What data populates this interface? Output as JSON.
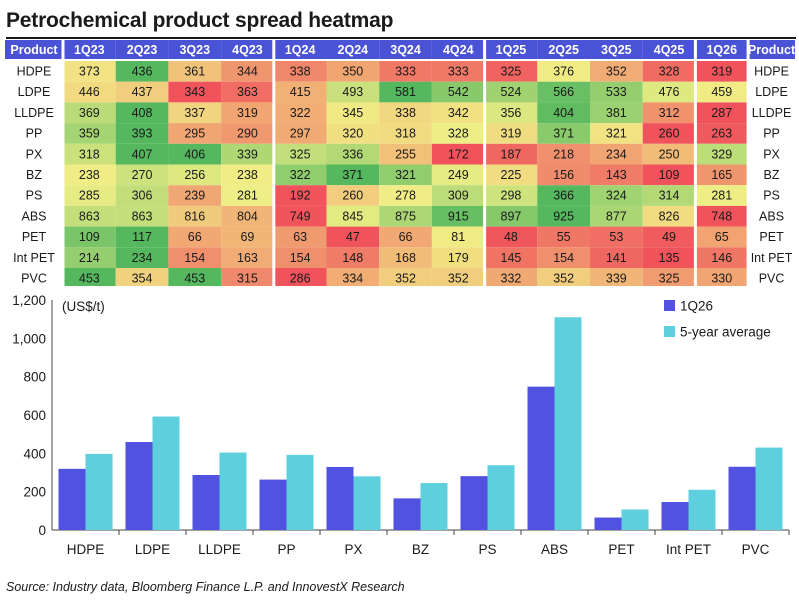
{
  "title": "Petrochemical product spread heatmap",
  "source": "Source: Industry data, Bloomberg Finance L.P. and InnovestX Research",
  "colors": {
    "header_bg": "#4a52d6",
    "header_text": "#ffffff",
    "heat_low": "#f0535c",
    "heat_mid": "#f1ef86",
    "heat_high": "#55b85e",
    "bar_1q26": "#5252e0",
    "bar_avg": "#5ecfdc"
  },
  "chart_data": [
    {
      "type": "heatmap",
      "row_header": "Product",
      "columns": [
        "1Q23",
        "2Q23",
        "3Q23",
        "4Q23",
        "1Q24",
        "2Q24",
        "3Q24",
        "4Q24",
        "1Q25",
        "2Q25",
        "3Q25",
        "4Q25",
        "1Q26"
      ],
      "rows": [
        {
          "product": "HDPE",
          "values": [
            373,
            436,
            361,
            344,
            338,
            350,
            333,
            333,
            325,
            376,
            352,
            328,
            319
          ]
        },
        {
          "product": "LDPE",
          "values": [
            446,
            437,
            343,
            363,
            415,
            493,
            581,
            542,
            524,
            566,
            533,
            476,
            459
          ]
        },
        {
          "product": "LLDPE",
          "values": [
            369,
            408,
            337,
            319,
            322,
            345,
            338,
            342,
            356,
            404,
            381,
            312,
            287
          ]
        },
        {
          "product": "PP",
          "values": [
            359,
            393,
            295,
            290,
            297,
            320,
            318,
            328,
            319,
            371,
            321,
            260,
            263
          ]
        },
        {
          "product": "PX",
          "values": [
            318,
            407,
            406,
            339,
            325,
            336,
            255,
            172,
            187,
            218,
            234,
            250,
            329
          ]
        },
        {
          "product": "BZ",
          "values": [
            238,
            270,
            256,
            238,
            322,
            371,
            321,
            249,
            225,
            156,
            143,
            109,
            165
          ]
        },
        {
          "product": "PS",
          "values": [
            285,
            306,
            239,
            281,
            192,
            260,
            278,
            309,
            298,
            366,
            324,
            314,
            281
          ]
        },
        {
          "product": "ABS",
          "values": [
            863,
            863,
            816,
            804,
            749,
            845,
            875,
            915,
            897,
            925,
            877,
            826,
            748
          ]
        },
        {
          "product": "PET",
          "values": [
            109,
            117,
            66,
            69,
            63,
            47,
            66,
            81,
            48,
            55,
            53,
            49,
            65
          ]
        },
        {
          "product": "Int PET",
          "values": [
            214,
            234,
            154,
            163,
            154,
            148,
            168,
            179,
            145,
            154,
            141,
            135,
            146
          ]
        },
        {
          "product": "PVC",
          "values": [
            453,
            354,
            453,
            315,
            286,
            334,
            352,
            352,
            332,
            352,
            339,
            325,
            330
          ]
        }
      ]
    },
    {
      "type": "bar",
      "categories": [
        "HDPE",
        "LDPE",
        "LLDPE",
        "PP",
        "PX",
        "BZ",
        "PS",
        "ABS",
        "PET",
        "Int PET",
        "PVC"
      ],
      "series": [
        {
          "name": "1Q26",
          "values": [
            319,
            459,
            287,
            263,
            329,
            165,
            281,
            748,
            65,
            146,
            330
          ]
        },
        {
          "name": "5-year average",
          "values": [
            397,
            592,
            404,
            392,
            280,
            245,
            338,
            1110,
            107,
            210,
            430
          ]
        }
      ],
      "ylabel": "(US$/t)",
      "ylim": [
        0,
        1200
      ],
      "yticks": [
        "0",
        "200",
        "400",
        "600",
        "800",
        "1,000",
        "1,200"
      ],
      "legend": "top-right"
    }
  ]
}
